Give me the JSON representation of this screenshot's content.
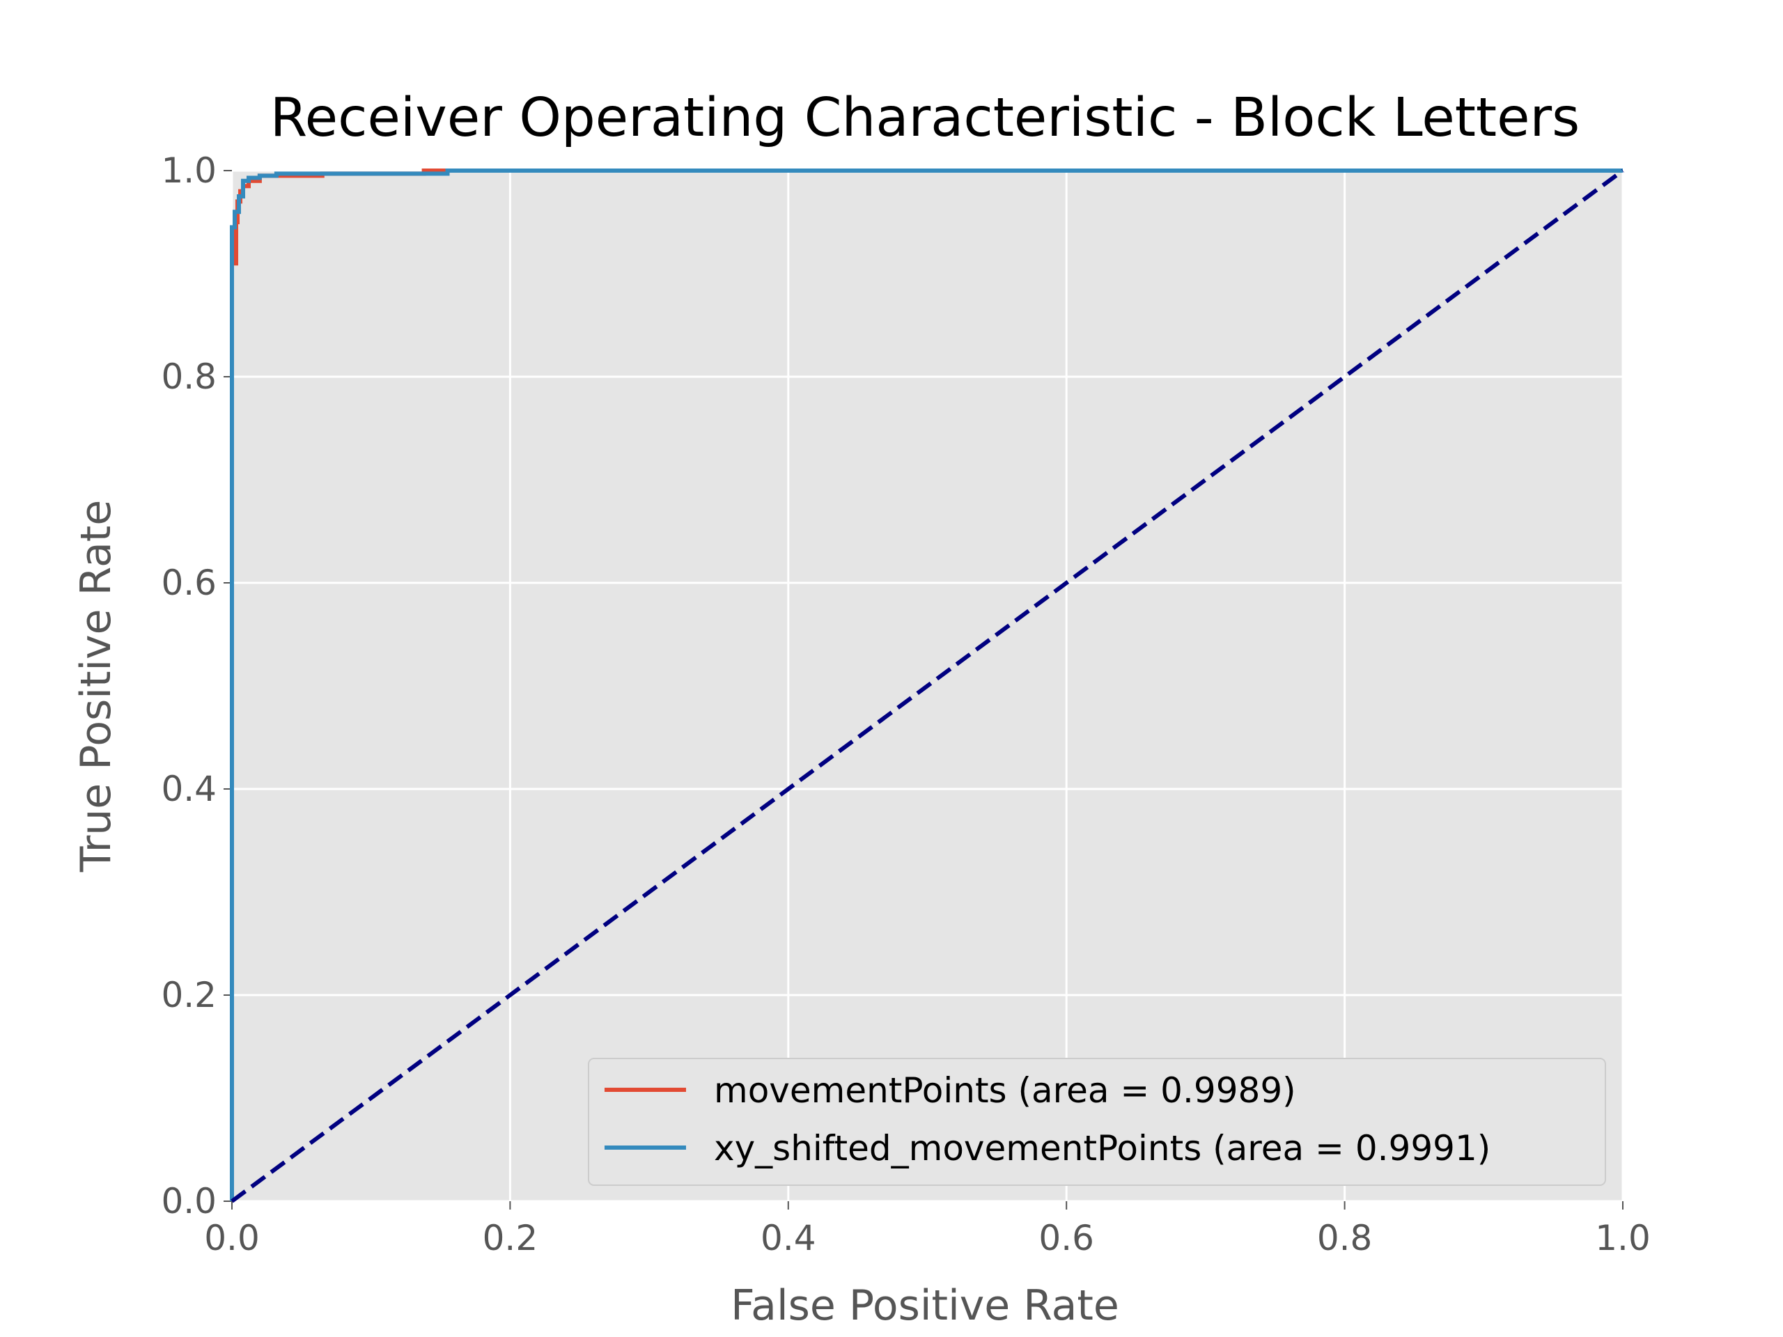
{
  "chart_data": {
    "type": "line",
    "title": "Receiver Operating Characteristic - Block Letters",
    "xlabel": "False Positive Rate",
    "ylabel": "True Positive Rate",
    "xlim": [
      0,
      1
    ],
    "ylim": [
      0,
      1
    ],
    "xticks": [
      "0.0",
      "0.2",
      "0.4",
      "0.6",
      "0.8",
      "1.0"
    ],
    "yticks": [
      "0.0",
      "0.2",
      "0.4",
      "0.6",
      "0.8",
      "1.0"
    ],
    "grid": true,
    "legend_position": "lower-right",
    "series": [
      {
        "name": "movementPoints (area = 0.9989)",
        "color": "#E24A33",
        "x": [
          0,
          0,
          0.003,
          0.003,
          0.004,
          0.004,
          0.006,
          0.006,
          0.008,
          0.008,
          0.012,
          0.012,
          0.02,
          0.02,
          0.032,
          0.065,
          0.065,
          0.138,
          0.138,
          1.0
        ],
        "y": [
          0,
          0.91,
          0.91,
          0.95,
          0.95,
          0.97,
          0.97,
          0.98,
          0.98,
          0.985,
          0.985,
          0.99,
          0.99,
          0.995,
          0.995,
          0.995,
          0.997,
          0.997,
          1.0,
          1.0
        ]
      },
      {
        "name": "xy_shifted_movementPoints (area = 0.9991)",
        "color": "#348ABD",
        "x": [
          0,
          0,
          0.002,
          0.002,
          0.005,
          0.005,
          0.008,
          0.008,
          0.012,
          0.012,
          0.02,
          0.02,
          0.032,
          0.032,
          0.155,
          0.155,
          1.0
        ],
        "y": [
          0,
          0.945,
          0.945,
          0.96,
          0.96,
          0.975,
          0.975,
          0.99,
          0.99,
          0.993,
          0.993,
          0.995,
          0.995,
          0.997,
          0.997,
          1.0,
          1.0
        ]
      }
    ],
    "reference_line": {
      "color": "#000080",
      "x": [
        0,
        1
      ],
      "y": [
        0,
        1
      ]
    }
  }
}
